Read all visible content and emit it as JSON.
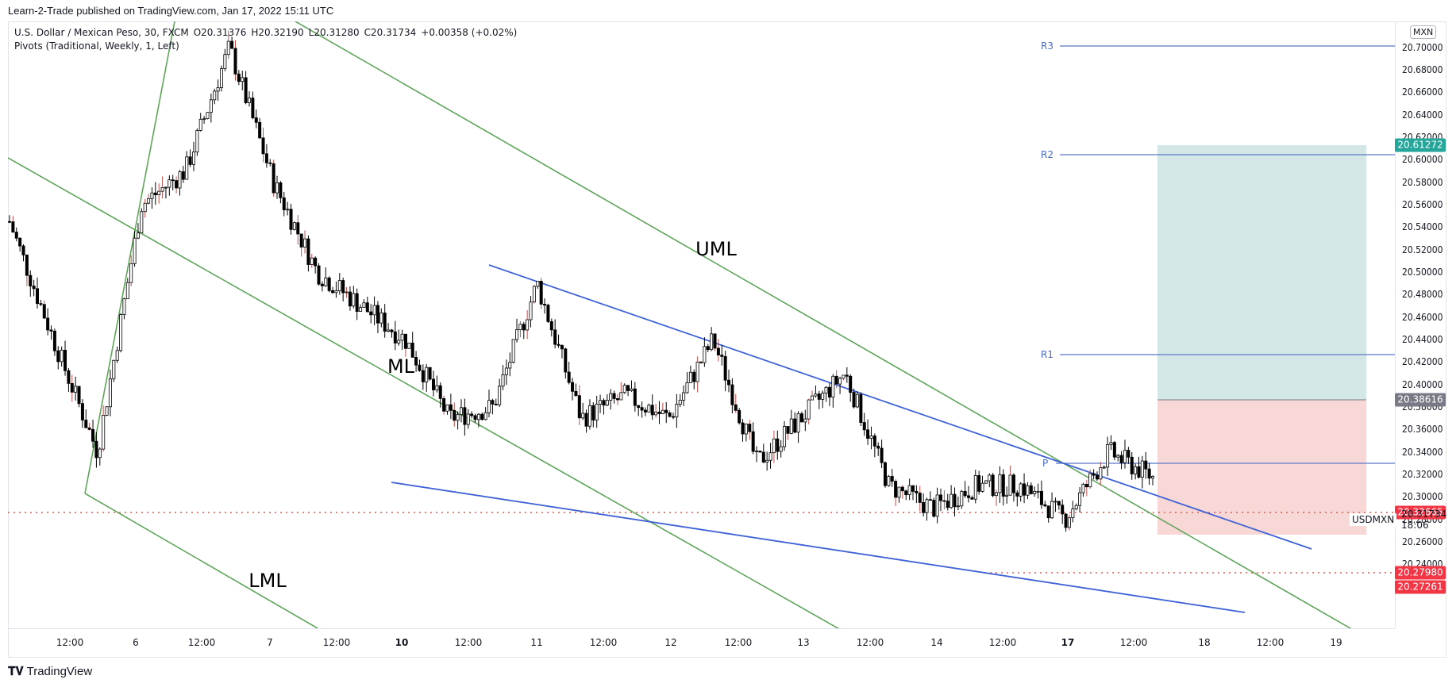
{
  "header": {
    "published": "Learn-2-Trade published on TradingView.com, Jan 17, 2022 15:11 UTC"
  },
  "legend": {
    "symbol_line": "U.S. Dollar / Mexican Peso, 30, FXCM",
    "open": "O20.31376",
    "high": "H20.32190",
    "low": "L20.31280",
    "close": "C20.31734",
    "change": "+0.00358 (+0.02%)",
    "indicator": "Pivots (Traditional, Weekly, 1, Left)"
  },
  "price_axis": {
    "currency_label": "MXN",
    "ticks": [
      "20.70000",
      "20.68000",
      "20.66000",
      "20.64000",
      "20.62000",
      "20.60000",
      "20.58000",
      "20.56000",
      "20.54000",
      "20.52000",
      "20.50000",
      "20.48000",
      "20.46000",
      "20.44000",
      "20.42000",
      "20.40000",
      "20.38000",
      "20.36000",
      "20.34000",
      "20.32000",
      "20.30000",
      "20.28000",
      "20.26000",
      "20.24000"
    ],
    "badges": [
      {
        "value": "20.61272",
        "color": "#26a69a",
        "role": "take-profit"
      },
      {
        "value": "20.38616",
        "color": "#787b86",
        "role": "entry"
      },
      {
        "value": "20.32665",
        "color": "#f23645",
        "role": "high-line"
      },
      {
        "value": "20.27980",
        "color": "#f23645",
        "role": "low-line"
      },
      {
        "value": "20.27261",
        "color": "#f23645",
        "role": "stop-loss"
      }
    ],
    "last_price": "20.31734",
    "countdown": "18:06",
    "symbol_tag": "USDMXN"
  },
  "time_axis": {
    "ticks": [
      "12:00",
      "6",
      "12:00",
      "7",
      "12:00",
      "10",
      "12:00",
      "11",
      "12:00",
      "12",
      "12:00",
      "13",
      "12:00",
      "14",
      "12:00",
      "17",
      "12:00",
      "18",
      "12:00",
      "19"
    ]
  },
  "annotations": {
    "uml": "UML",
    "ml": "ML",
    "lml": "LML",
    "pivots": [
      "R3",
      "R2",
      "R1",
      "P"
    ]
  },
  "footer": {
    "brand": "TradingView"
  },
  "colors": {
    "pitchfork": "#5fa55a",
    "wedge": "#3f63d6",
    "pivot": "#5b78c8",
    "tp_zone": "#d3e8e6",
    "sl_zone": "#f8d7d7",
    "dotted": "#e05a50"
  },
  "chart_data": {
    "type": "candlestick",
    "title": "U.S. Dollar / Mexican Peso, 30, FXCM",
    "subtitle": "Pivots (Traditional, Weekly, 1, Left)",
    "xlabel": "",
    "ylabel": "MXN",
    "ylim": [
      20.23,
      20.71
    ],
    "ohlc_last": {
      "open": 20.31376,
      "high": 20.3219,
      "low": 20.3128,
      "close": 20.31734,
      "change": 0.00358,
      "change_pct": 0.02
    },
    "x_ticks": [
      "12:00",
      "6",
      "12:00",
      "7",
      "12:00",
      "10",
      "12:00",
      "11",
      "12:00",
      "12",
      "12:00",
      "13",
      "12:00",
      "14",
      "12:00",
      "17",
      "12:00",
      "18",
      "12:00",
      "19"
    ],
    "approx_close_path": [
      {
        "t": "Jan 5 06:00",
        "price": 20.545
      },
      {
        "t": "Jan 5 12:00",
        "price": 20.44
      },
      {
        "t": "Jan 5 16:00",
        "price": 20.34
      },
      {
        "t": "Jan 5 22:00",
        "price": 20.56
      },
      {
        "t": "Jan 6 06:00",
        "price": 20.59
      },
      {
        "t": "Jan 6 10:00",
        "price": 20.7
      },
      {
        "t": "Jan 6 16:00",
        "price": 20.58
      },
      {
        "t": "Jan 6 22:00",
        "price": 20.5
      },
      {
        "t": "Jan 7 06:00",
        "price": 20.47
      },
      {
        "t": "Jan 7 12:00",
        "price": 20.44
      },
      {
        "t": "Jan 7 18:00",
        "price": 20.37
      },
      {
        "t": "Jan 10 06:00",
        "price": 20.38
      },
      {
        "t": "Jan 10 16:00",
        "price": 20.49
      },
      {
        "t": "Jan 10 22:00",
        "price": 20.37
      },
      {
        "t": "Jan 11 12:00",
        "price": 20.39
      },
      {
        "t": "Jan 11 20:00",
        "price": 20.37
      },
      {
        "t": "Jan 12 14:00",
        "price": 20.44
      },
      {
        "t": "Jan 12 20:00",
        "price": 20.33
      },
      {
        "t": "Jan 13 10:00",
        "price": 20.37
      },
      {
        "t": "Jan 13 14:00",
        "price": 20.41
      },
      {
        "t": "Jan 13 22:00",
        "price": 20.31
      },
      {
        "t": "Jan 14 10:00",
        "price": 20.29
      },
      {
        "t": "Jan 14 20:00",
        "price": 20.31
      },
      {
        "t": "Jan 17 06:00",
        "price": 20.31
      },
      {
        "t": "Jan 17 10:00",
        "price": 20.28
      },
      {
        "t": "Jan 17 13:00",
        "price": 20.34
      },
      {
        "t": "Jan 17 15:00",
        "price": 20.31734
      }
    ],
    "horizontal_levels": [
      {
        "name": "R3",
        "price": 20.692
      },
      {
        "name": "R2",
        "price": 20.605
      },
      {
        "name": "R1",
        "price": 20.427
      },
      {
        "name": "P",
        "price": 20.3635
      },
      {
        "name": "resistance (dotted)",
        "price": 20.32665
      },
      {
        "name": "support (dotted)",
        "price": 20.2798
      }
    ],
    "position_tool": {
      "type": "long",
      "entry": 20.38616,
      "take_profit": 20.61272,
      "stop_loss": 20.27261
    },
    "trendlines": [
      {
        "name": "UML",
        "color": "#5fa55a"
      },
      {
        "name": "ML",
        "color": "#5fa55a"
      },
      {
        "name": "LML",
        "color": "#5fa55a"
      },
      {
        "name": "wedge upper",
        "color": "#3f63d6"
      },
      {
        "name": "wedge lower",
        "color": "#3f63d6"
      }
    ],
    "legend_position": "top-left",
    "grid": false
  }
}
